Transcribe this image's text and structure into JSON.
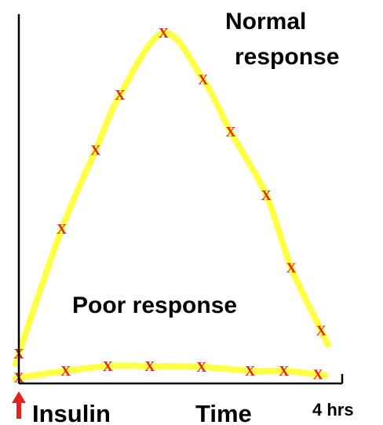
{
  "chart_data": {
    "type": "line",
    "title": "",
    "xlabel": "Time",
    "ylabel": "",
    "x_start_label": "Insulin",
    "x_end_tick": "4 hrs",
    "xlim": [
      0,
      4
    ],
    "ylim": [
      0,
      10
    ],
    "grid": false,
    "series": [
      {
        "name": "Normal response",
        "color": "#ffff44",
        "marker": "X",
        "marker_color": "#e0241b",
        "x": [
          0.0,
          0.53,
          0.95,
          1.25,
          1.79,
          2.28,
          2.62,
          3.06,
          3.37,
          3.74
        ],
        "y": [
          0.81,
          4.18,
          6.32,
          7.81,
          9.49,
          8.23,
          6.81,
          5.1,
          3.13,
          1.43
        ]
      },
      {
        "name": "Poor response",
        "color": "#ffff44",
        "marker": "X",
        "marker_color": "#e0241b",
        "x": [
          0.0,
          0.58,
          1.1,
          1.62,
          2.26,
          2.86,
          3.28,
          3.7
        ],
        "y": [
          0.16,
          0.34,
          0.47,
          0.47,
          0.45,
          0.34,
          0.34,
          0.24
        ]
      }
    ],
    "series_labels": {
      "normal_line1": "Normal",
      "normal_line2": "response",
      "poor": "Poor response"
    },
    "insulin_arrow_color": "#e0241b",
    "marker_glyph": "X"
  }
}
